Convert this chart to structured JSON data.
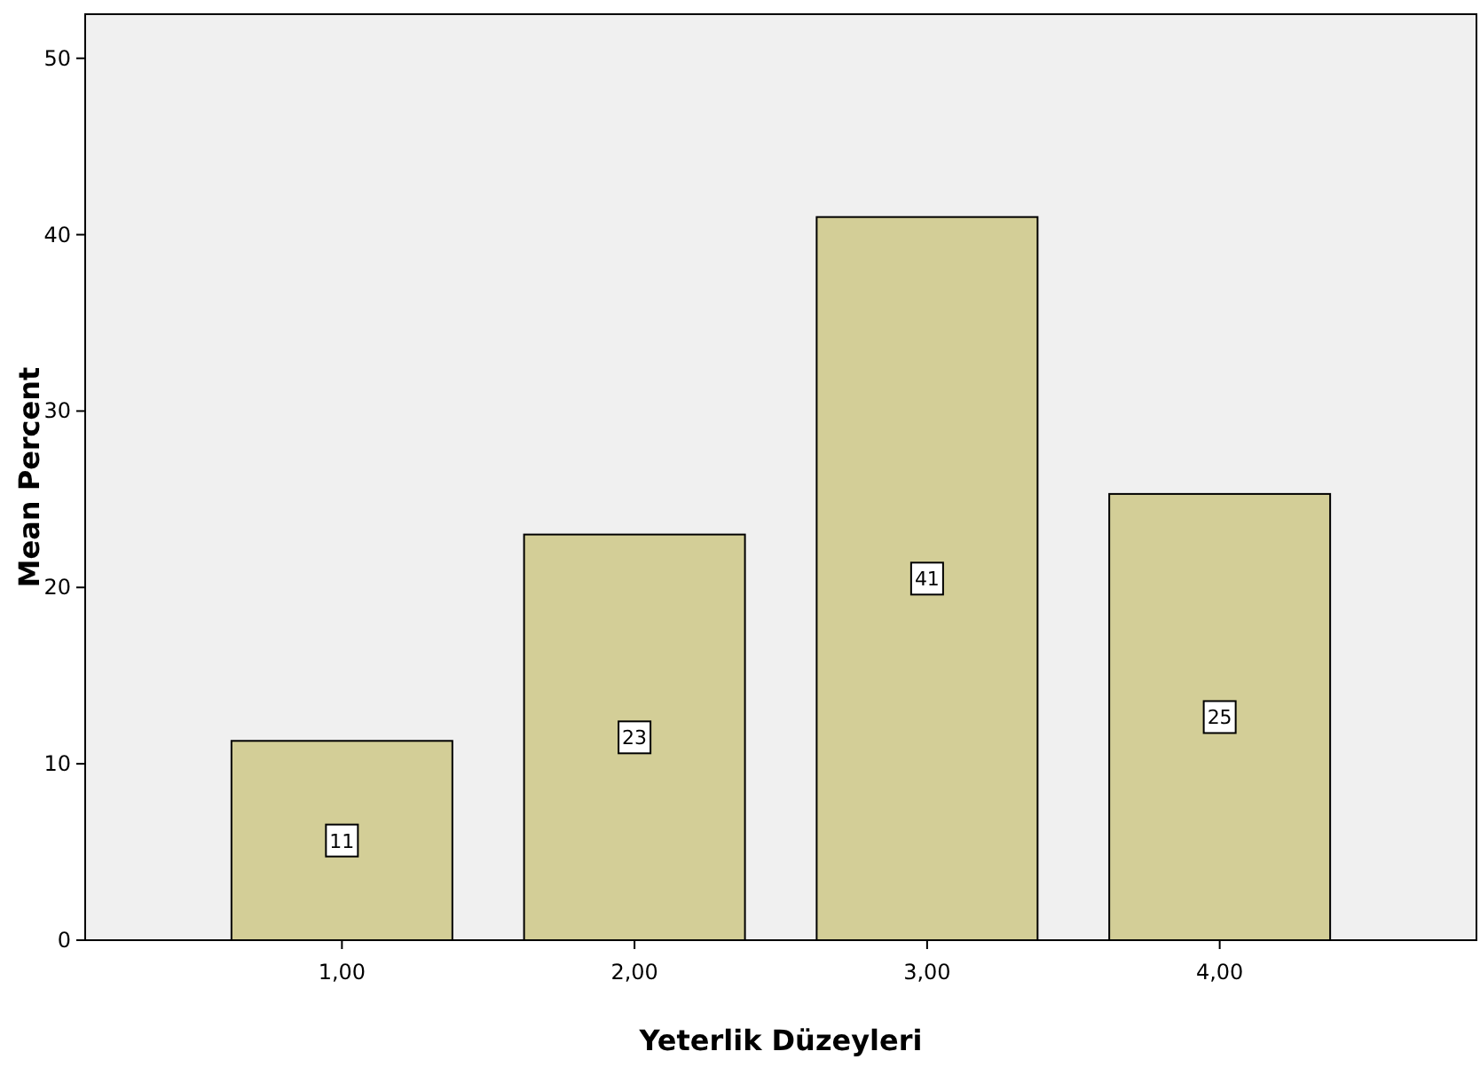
{
  "chart_data": {
    "type": "bar",
    "xlabel": "Yeterlik Düzeyleri",
    "ylabel": "Mean Percent",
    "categories": [
      "1,00",
      "2,00",
      "3,00",
      "4,00"
    ],
    "values": [
      11.3,
      23.0,
      41.0,
      25.3
    ],
    "value_labels": [
      "11",
      "23",
      "41",
      "25"
    ],
    "color": "#d3ce97",
    "ylim": [
      0,
      52.5
    ],
    "yticks": [
      0,
      10,
      20,
      30,
      40,
      50
    ]
  }
}
